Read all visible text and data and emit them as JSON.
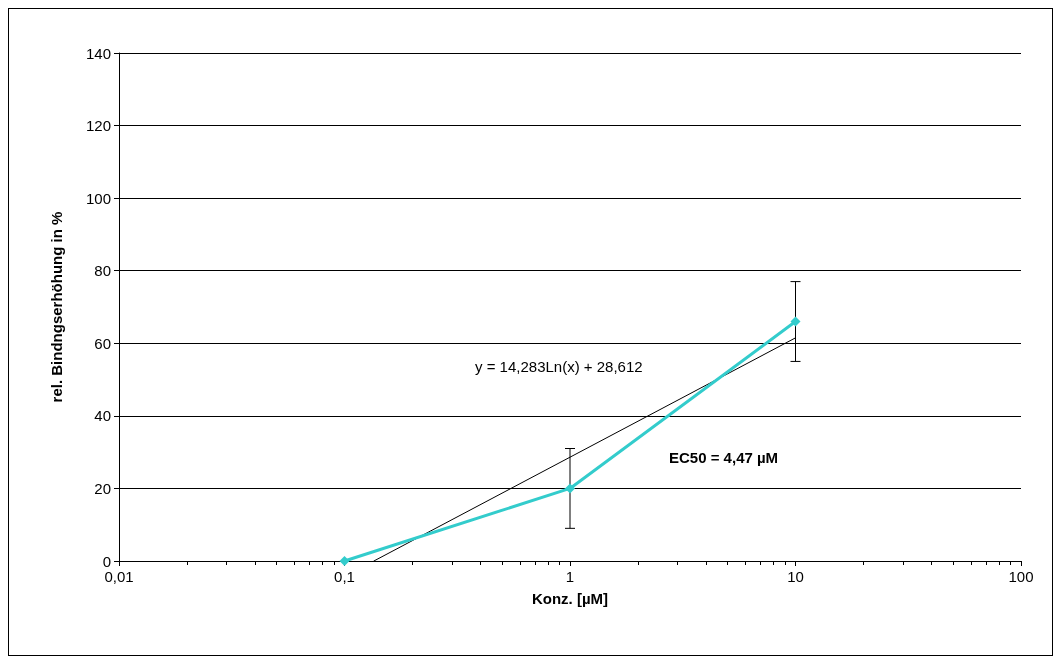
{
  "chart_data": {
    "type": "line",
    "xlabel": "Konz. [µM]",
    "ylabel": "rel. Bindngserhöhung in %",
    "log": "x",
    "xlim": [
      0.01,
      100
    ],
    "xticks": [
      {
        "value": 0.01,
        "label": "0,01"
      },
      {
        "value": 0.1,
        "label": "0,1"
      },
      1,
      10,
      100
    ],
    "ylim": [
      0,
      140
    ],
    "yticks": [
      0,
      20,
      40,
      60,
      80,
      100,
      120,
      140
    ],
    "grid": "y",
    "series": [
      {
        "x": [
          0.1,
          1,
          10
        ],
        "values": [
          0,
          20,
          66
        ],
        "errors": [
          null,
          11,
          11
        ],
        "color": "#33cccc",
        "marker": "diamond"
      },
      {
        "type": "line",
        "x": [
          0.135,
          10
        ],
        "values": [
          0,
          61.5
        ],
        "color": "#000000",
        "marker": "none"
      }
    ],
    "annotations": [
      "y = 14,283Ln(x) + 28,612",
      "EC50 = 4,47 µM"
    ]
  }
}
